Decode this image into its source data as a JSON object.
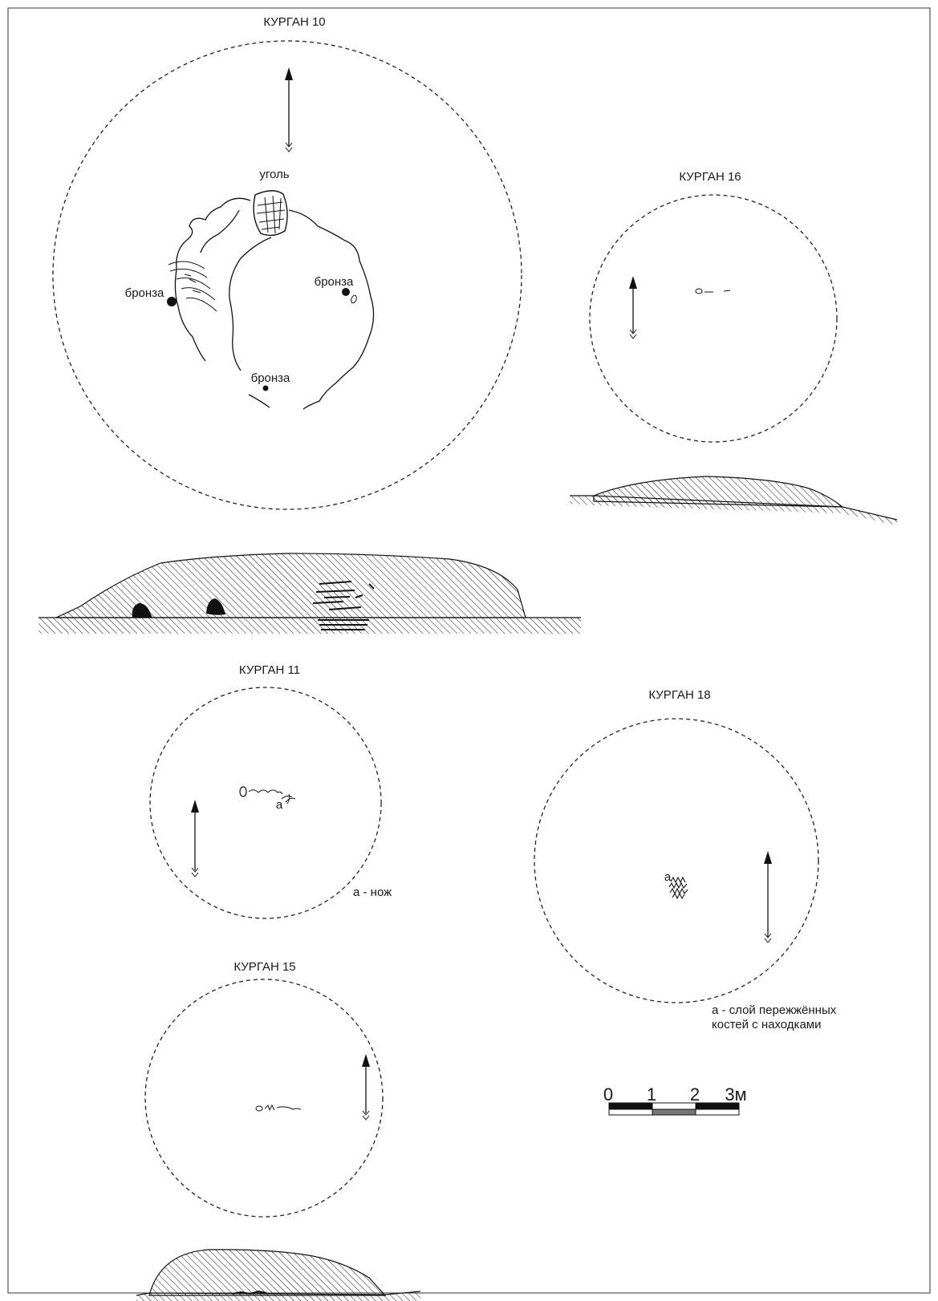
{
  "kurgan10": {
    "title": "КУРГАН 10",
    "label_coal": "уголь",
    "label_bronze_left": "бронза",
    "label_bronze_right": "бронза",
    "label_bronze_bottom": "бронза"
  },
  "kurgan16": {
    "title": "КУРГАН 16"
  },
  "kurgan11": {
    "title": "КУРГАН 11",
    "find_marker": "а",
    "legend": "а - нож"
  },
  "kurgan18": {
    "title": "КУРГАН 18",
    "find_marker": "а",
    "legend_line1": "а - слой пережжённых",
    "legend_line2": "костей с находками"
  },
  "kurgan15": {
    "title": "КУРГАН 15"
  },
  "scale_bar": {
    "ticks": [
      "0",
      "1",
      "2",
      "3м"
    ],
    "segment_colors": [
      "#111111",
      "#ffffff",
      "#777777",
      "#111111"
    ]
  }
}
